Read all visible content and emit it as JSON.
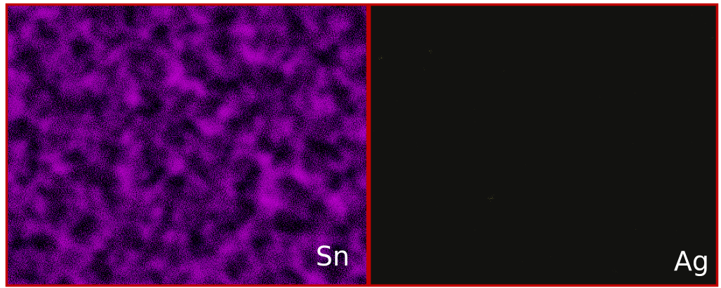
{
  "panels": [
    {
      "label": "Sn"
    },
    {
      "label": "Ag"
    }
  ]
}
